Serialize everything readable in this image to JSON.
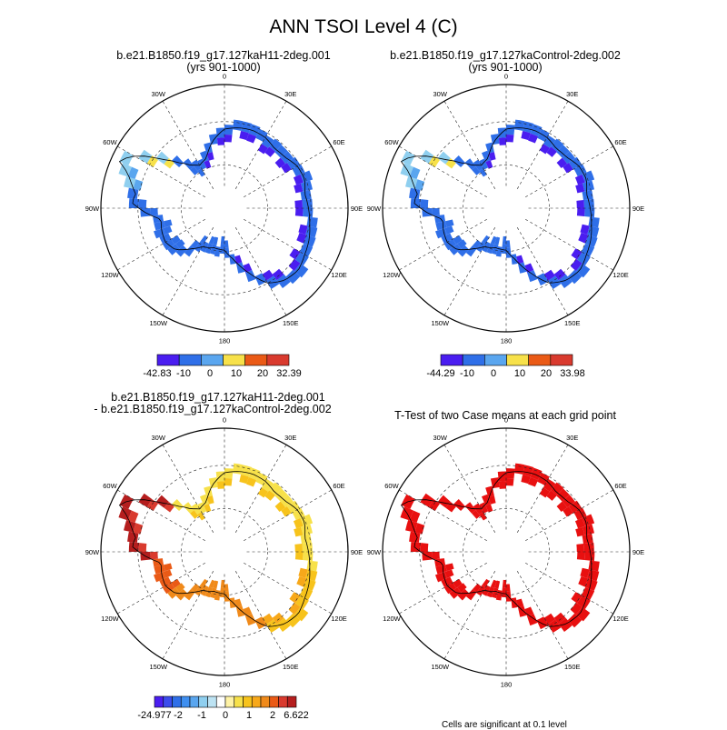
{
  "title": "ANN TSOI Level 4 (C)",
  "colors": {
    "blue_scale": [
      "#4a1df0",
      "#2f6fe8",
      "#5aa6ef",
      "#8fcfef"
    ],
    "warm_scale": [
      "#f7e14a",
      "#f7c31c",
      "#f0901a",
      "#ea5a16",
      "#d93a2e",
      "#c22222"
    ],
    "diff_scale": [
      "#4a1df0",
      "#3b4cec",
      "#2f6fe8",
      "#3f8ff0",
      "#5aa6ef",
      "#8fcfef",
      "#bde3f3",
      "#ffffff",
      "#fff3a6",
      "#f7e14a",
      "#f7c31c",
      "#f7a81a",
      "#f08a1a",
      "#ea5a16",
      "#d93a2e",
      "#b51e1e"
    ],
    "significant": "#e81010"
  },
  "polar_labels": {
    "top": "0",
    "bottom": "180",
    "left": "90W",
    "right": "90E",
    "deg30w": "30W",
    "deg30e": "30E",
    "deg60w": "60W",
    "deg60e": "60E",
    "deg120w": "120W",
    "deg120e": "120E",
    "deg150w": "150W",
    "deg150e": "150E"
  },
  "panels": [
    {
      "title_line1": "b.e21.B1850.f19_g17.127kaH11-2deg.001",
      "title_line2": "(yrs 901-1000)",
      "colorbar_labels": [
        "-42.83",
        "-10",
        "0",
        "10",
        "20",
        "32.39"
      ]
    },
    {
      "title_line1": "b.e21.B1850.f19_g17.127kaControl-2deg.002",
      "title_line2": "(yrs 901-1000)",
      "colorbar_labels": [
        "-44.29",
        "-10",
        "0",
        "10",
        "20",
        "33.98"
      ]
    },
    {
      "title_line1": "b.e21.B1850.f19_g17.127kaH11-2deg.001",
      "title_line2": "- b.e21.B1850.f19_g17.127kaControl-2deg.002",
      "colorbar_labels": [
        "-24.977",
        "-2",
        "-1",
        "0",
        "1",
        "2",
        "6.622"
      ]
    },
    {
      "title_line1": "T-Test of two Case means at each grid point",
      "footnote": "Cells are significant at 0.1 level"
    }
  ],
  "chart_data": [
    {
      "type": "polar-map",
      "variable": "ANN TSOI Level 4",
      "units": "C",
      "case": "b.e21.B1850.f19_g17.127kaH11-2deg.001",
      "years": "901-1000",
      "min": -42.83,
      "max": 32.39,
      "contour_levels": [
        -42.83,
        -10,
        0,
        10,
        20,
        32.39
      ]
    },
    {
      "type": "polar-map",
      "variable": "ANN TSOI Level 4",
      "units": "C",
      "case": "b.e21.B1850.f19_g17.127kaControl-2deg.002",
      "years": "901-1000",
      "min": -44.29,
      "max": 33.98,
      "contour_levels": [
        -44.29,
        -10,
        0,
        10,
        20,
        33.98
      ]
    },
    {
      "type": "polar-map",
      "variable": "ANN TSOI Level 4 difference",
      "units": "C",
      "min": -24.977,
      "max": 6.622,
      "contour_levels": [
        -24.977,
        -2,
        -1,
        0,
        1,
        2,
        6.622
      ]
    },
    {
      "type": "polar-map",
      "variable": "T-Test significance",
      "significance_level": 0.1
    }
  ]
}
